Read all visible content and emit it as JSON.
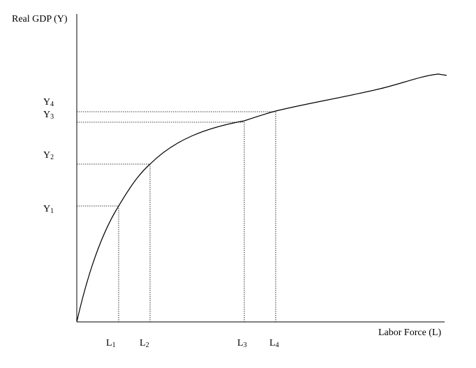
{
  "diagram": {
    "y_axis_label": "Real GDP (Y)",
    "x_axis_label": "Labor Force (L)",
    "y_ticks": [
      {
        "letter": "Y",
        "sub": "1"
      },
      {
        "letter": "Y",
        "sub": "2"
      },
      {
        "letter": "Y",
        "sub": "3"
      },
      {
        "letter": "Y",
        "sub": "4"
      }
    ],
    "x_ticks": [
      {
        "letter": "L",
        "sub": "1"
      },
      {
        "letter": "L",
        "sub": "2"
      },
      {
        "letter": "L",
        "sub": "3"
      },
      {
        "letter": "L",
        "sub": "4"
      }
    ],
    "colors": {
      "line": "#000000",
      "background": "#ffffff"
    }
  }
}
